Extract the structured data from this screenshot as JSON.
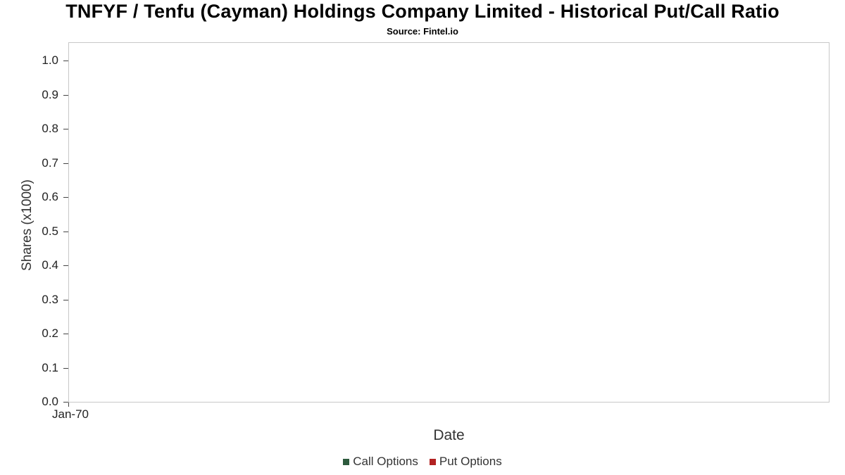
{
  "header": {
    "title": "TNFYF / Tenfu (Cayman) Holdings Company Limited - Historical Put/Call Ratio",
    "subtitle": "Source: Fintel.io"
  },
  "chart_data": {
    "type": "line",
    "title": "TNFYF / Tenfu (Cayman) Holdings Company Limited - Historical Put/Call Ratio",
    "subtitle": "Source: Fintel.io",
    "xlabel": "Date",
    "ylabel": "Shares (x1000)",
    "ylim": [
      0.0,
      1.0
    ],
    "y_ticks": [
      "0.0",
      "0.1",
      "0.2",
      "0.3",
      "0.4",
      "0.5",
      "0.6",
      "0.7",
      "0.8",
      "0.9",
      "1.0"
    ],
    "x_ticks": [
      "Jan-70"
    ],
    "grid": false,
    "legend_position": "bottom",
    "plot_border_color": "#c8c8c8",
    "series": [
      {
        "name": "Call Options",
        "color": "#2d5a3d",
        "x": [],
        "values": []
      },
      {
        "name": "Put Options",
        "color": "#b22222",
        "x": [],
        "values": []
      }
    ]
  }
}
